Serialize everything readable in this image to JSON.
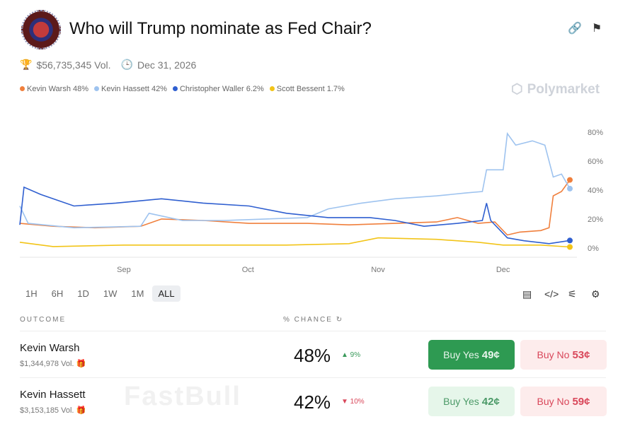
{
  "header": {
    "title": "Who will Trump nominate as Fed Chair?",
    "volume": "$56,735,345 Vol.",
    "end_date": "Dec 31, 2026",
    "brand": "Polymarket",
    "icons": [
      "link-icon",
      "bookmark-icon",
      "trophy-icon",
      "clock-icon"
    ]
  },
  "legend": [
    {
      "label": "Kevin Warsh 48%",
      "color": "#f07f3c"
    },
    {
      "label": "Kevin Hassett 42%",
      "color": "#9ec3ef"
    },
    {
      "label": "Christopher Waller 6.2%",
      "color": "#2f5fd0"
    },
    {
      "label": "Scott Bessent 1.7%",
      "color": "#f2c418"
    }
  ],
  "chart_data": {
    "type": "line",
    "x_ticks": [
      "Sep",
      "Oct",
      "Nov",
      "Dec"
    ],
    "y_ticks": [
      "0%",
      "20%",
      "40%",
      "60%",
      "80%"
    ],
    "ylim": [
      0,
      85
    ],
    "grid": false,
    "series": [
      {
        "name": "Kevin Warsh",
        "color": "#f07f3c",
        "points": [
          [
            "2025-08-07",
            18
          ],
          [
            "2025-08-15",
            16
          ],
          [
            "2025-08-25",
            15
          ],
          [
            "2025-09-05",
            16
          ],
          [
            "2025-09-10",
            21
          ],
          [
            "2025-09-20",
            20
          ],
          [
            "2025-10-01",
            18
          ],
          [
            "2025-10-15",
            18
          ],
          [
            "2025-10-25",
            17
          ],
          [
            "2025-11-05",
            18
          ],
          [
            "2025-11-15",
            19
          ],
          [
            "2025-11-20",
            22
          ],
          [
            "2025-11-25",
            18
          ],
          [
            "2025-11-29",
            19
          ],
          [
            "2025-12-02",
            10
          ],
          [
            "2025-12-05",
            12
          ],
          [
            "2025-12-10",
            13
          ],
          [
            "2025-12-12",
            15
          ],
          [
            "2025-12-13",
            37
          ],
          [
            "2025-12-15",
            40
          ],
          [
            "2025-12-17",
            48
          ]
        ]
      },
      {
        "name": "Kevin Hassett",
        "color": "#9ec3ef",
        "points": [
          [
            "2025-08-07",
            30
          ],
          [
            "2025-08-09",
            18
          ],
          [
            "2025-08-20",
            15
          ],
          [
            "2025-09-05",
            16
          ],
          [
            "2025-09-07",
            25
          ],
          [
            "2025-09-15",
            20
          ],
          [
            "2025-09-25",
            20
          ],
          [
            "2025-10-05",
            21
          ],
          [
            "2025-10-15",
            22
          ],
          [
            "2025-10-20",
            28
          ],
          [
            "2025-10-28",
            32
          ],
          [
            "2025-11-05",
            35
          ],
          [
            "2025-11-15",
            37
          ],
          [
            "2025-11-22",
            39
          ],
          [
            "2025-11-26",
            40
          ],
          [
            "2025-11-27",
            55
          ],
          [
            "2025-12-01",
            55
          ],
          [
            "2025-12-02",
            80
          ],
          [
            "2025-12-04",
            72
          ],
          [
            "2025-12-08",
            75
          ],
          [
            "2025-12-11",
            72
          ],
          [
            "2025-12-13",
            50
          ],
          [
            "2025-12-15",
            52
          ],
          [
            "2025-12-17",
            42
          ]
        ]
      },
      {
        "name": "Christopher Waller",
        "color": "#2f5fd0",
        "points": [
          [
            "2025-08-07",
            17
          ],
          [
            "2025-08-08",
            43
          ],
          [
            "2025-08-12",
            38
          ],
          [
            "2025-08-20",
            30
          ],
          [
            "2025-08-30",
            32
          ],
          [
            "2025-09-10",
            35
          ],
          [
            "2025-09-20",
            32
          ],
          [
            "2025-10-01",
            30
          ],
          [
            "2025-10-10",
            25
          ],
          [
            "2025-10-20",
            22
          ],
          [
            "2025-10-30",
            22
          ],
          [
            "2025-11-05",
            20
          ],
          [
            "2025-11-12",
            16
          ],
          [
            "2025-11-20",
            18
          ],
          [
            "2025-11-26",
            20
          ],
          [
            "2025-11-27",
            32
          ],
          [
            "2025-11-28",
            20
          ],
          [
            "2025-12-02",
            8
          ],
          [
            "2025-12-06",
            6
          ],
          [
            "2025-12-12",
            4
          ],
          [
            "2025-12-17",
            6.2
          ]
        ]
      },
      {
        "name": "Scott Bessent",
        "color": "#f2c418",
        "points": [
          [
            "2025-08-07",
            5
          ],
          [
            "2025-08-15",
            2
          ],
          [
            "2025-09-01",
            3
          ],
          [
            "2025-09-20",
            3
          ],
          [
            "2025-10-10",
            3
          ],
          [
            "2025-10-25",
            4
          ],
          [
            "2025-11-01",
            8
          ],
          [
            "2025-11-15",
            7
          ],
          [
            "2025-11-25",
            5
          ],
          [
            "2025-12-01",
            3
          ],
          [
            "2025-12-10",
            3
          ],
          [
            "2025-12-17",
            1.7
          ]
        ]
      }
    ]
  },
  "ranges": [
    "1H",
    "6H",
    "1D",
    "1W",
    "1M",
    "ALL"
  ],
  "active_range": "ALL",
  "table": {
    "col_outcome": "OUTCOME",
    "col_chance": "% CHANCE",
    "rows": [
      {
        "name": "Kevin Warsh",
        "vol": "$1,344,978 Vol.",
        "pct": "48%",
        "change": "▲ 9%",
        "dir": "up",
        "yes_label": "Buy Yes",
        "yes_price": "49¢",
        "no_label": "Buy No",
        "no_price": "53¢"
      },
      {
        "name": "Kevin Hassett",
        "vol": "$3,153,185 Vol.",
        "pct": "42%",
        "change": "▼ 10%",
        "dir": "down",
        "yes_label": "Buy Yes",
        "yes_price": "42¢",
        "no_label": "Buy No",
        "no_price": "59¢"
      }
    ]
  },
  "watermark": "FastBull"
}
